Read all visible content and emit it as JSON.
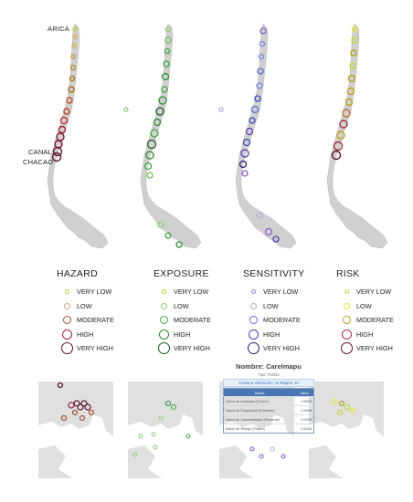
{
  "labels": {
    "north": "ARICA",
    "south_line1": "CANAL",
    "south_line2": "CHACAO"
  },
  "legend_levels": [
    "VERY LOW",
    "LOW",
    "MODERATE",
    "HIGH",
    "VERY HIGH"
  ],
  "panels": [
    {
      "title": "HAZARD",
      "colors": [
        "#c8c84a",
        "#e0a07a",
        "#a0522d",
        "#a0223a",
        "#5a1428"
      ]
    },
    {
      "title": "EXPOSURE",
      "colors": [
        "#d6c638",
        "#8fd07a",
        "#3fa83f",
        "#2a8a2a",
        "#1a5a1a"
      ]
    },
    {
      "title": "SENSITIVITY",
      "colors": [
        "#7a8ae0",
        "#b8a8e0",
        "#8a5ad0",
        "#5a3ab0",
        "#2a1a6a"
      ]
    },
    {
      "title": "RISK",
      "colors": [
        "#c6d640",
        "#e6e63a",
        "#b8a020",
        "#a0303a",
        "#5a1428"
      ]
    }
  ],
  "popup": {
    "title": "Nombre: Carelmapu",
    "subtitle": "Tipo: Pueblo",
    "bar": "Comuna: MAULLÍN | 10 Región: 10",
    "header": [
      "Índice",
      "Valor"
    ],
    "rows": [
      [
        "Índice de Amenaza (Futuro)",
        "0.8608"
      ],
      [
        "Índice de Exposición (Presente)",
        "0.6068"
      ],
      [
        "Índice de Vulnerabilidad (Presente)",
        "0.5259"
      ],
      [
        "Índice de Riesgo (Futuro)",
        "0.6028"
      ]
    ]
  }
}
